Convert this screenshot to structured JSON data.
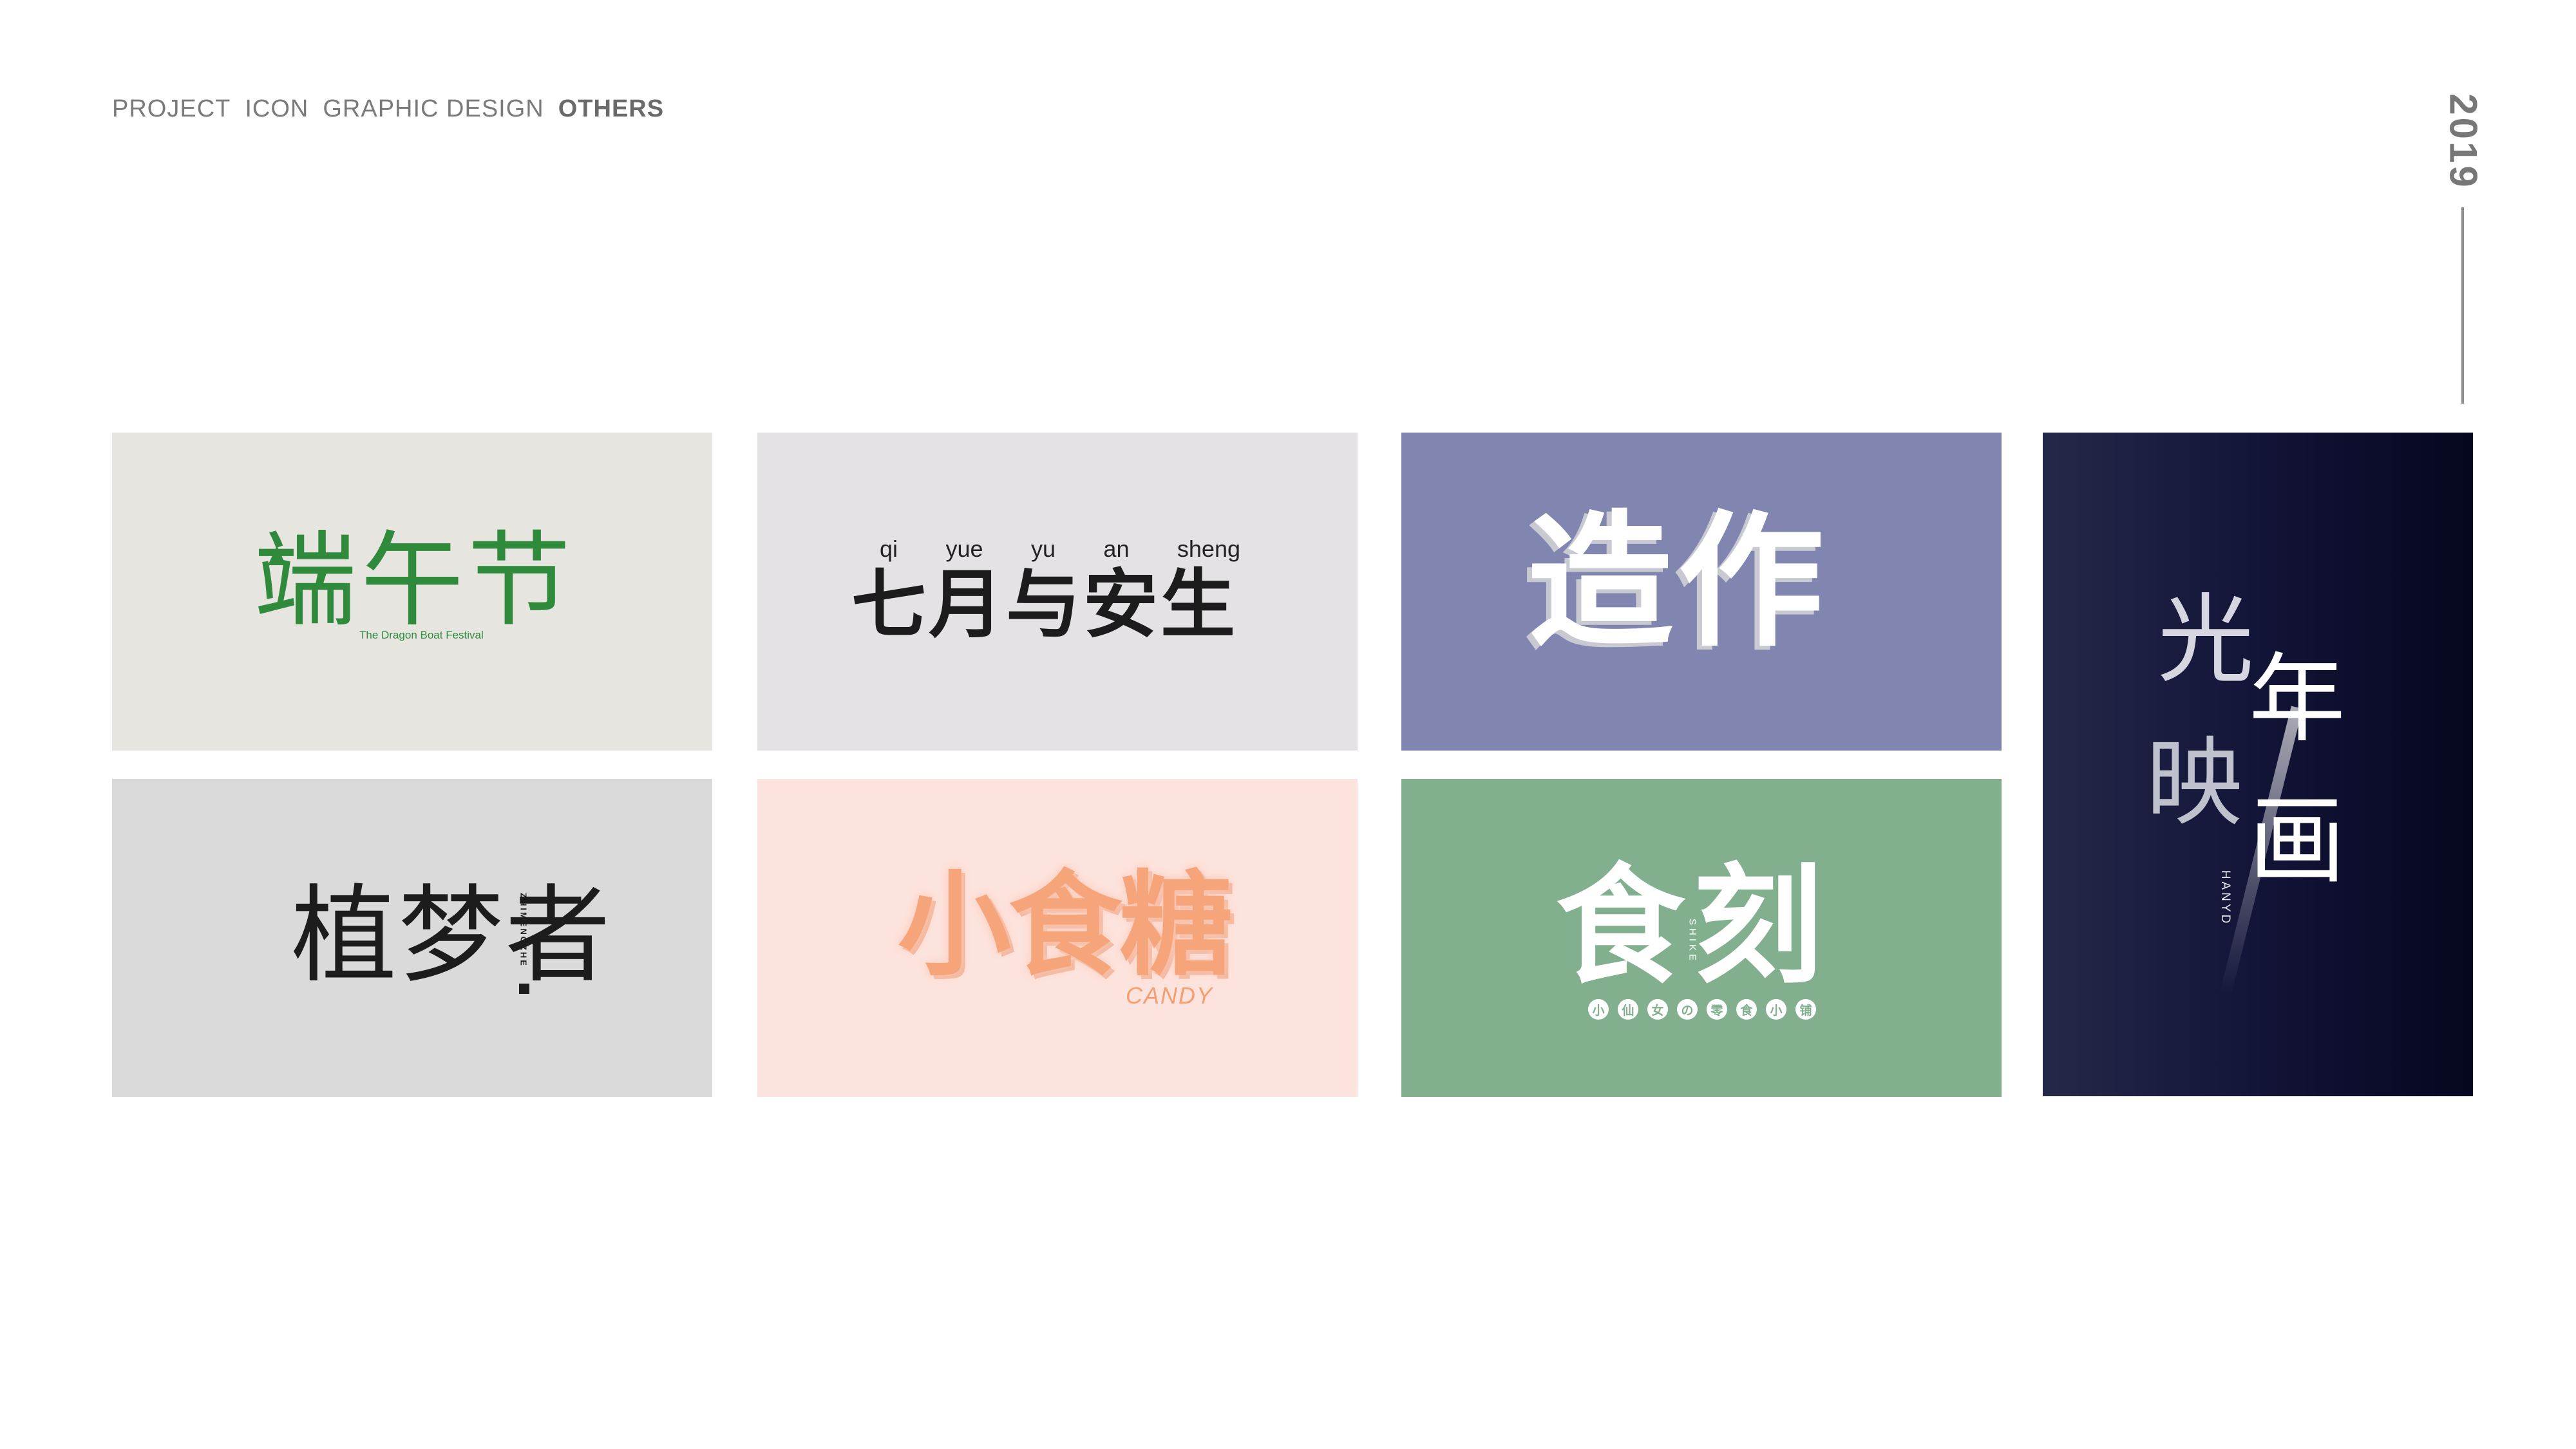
{
  "header": {
    "nav": [
      "PROJECT",
      "ICON",
      "GRAPHIC DESIGN",
      "OTHERS"
    ],
    "active": "OTHERS",
    "year": "2019"
  },
  "cards": {
    "dragon_boat": {
      "title": "端午节",
      "subtitle": "The Dragon Boat Festival",
      "color": "#2f8a3c"
    },
    "july": {
      "pinyin": [
        "qi",
        "yue",
        "yu",
        "an",
        "sheng"
      ],
      "title": "七月与安生"
    },
    "zaozuo": {
      "title": "造作"
    },
    "guangnian": {
      "line1a": "光",
      "line1b": "年",
      "line2a": "映",
      "line2b": "画",
      "vertical": "HANYD"
    },
    "zhimengzhe": {
      "title": "植梦者",
      "vertical": "ZHIMENGZHE"
    },
    "candy": {
      "title": "小食糖",
      "subtitle": "CANDY",
      "color": "#f6a57a"
    },
    "shike": {
      "title": "食刻",
      "vertical": "SHIKE",
      "sub": [
        "小",
        "仙",
        "女",
        "の",
        "零",
        "食",
        "小",
        "铺"
      ]
    }
  }
}
